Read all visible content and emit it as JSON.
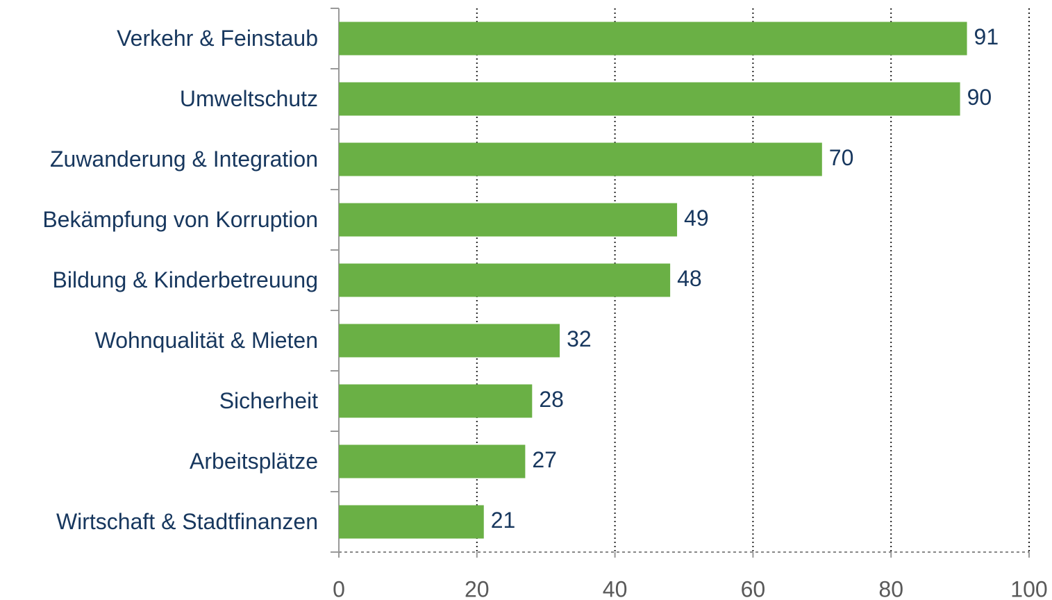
{
  "chart_data": {
    "type": "bar",
    "orientation": "horizontal",
    "categories": [
      "Verkehr & Feinstaub",
      "Umweltschutz",
      "Zuwanderung & Integration",
      "Bekämpfung von Korruption",
      "Bildung & Kinderbetreuung",
      "Wohnqualität & Mieten",
      "Sicherheit",
      "Arbeitsplätze",
      "Wirtschaft & Stadtfinanzen"
    ],
    "values": [
      91,
      90,
      70,
      49,
      48,
      32,
      28,
      27,
      21
    ],
    "color": "#6ab045",
    "xlim": [
      0,
      100
    ],
    "xticks": [
      0,
      20,
      40,
      60,
      80,
      100
    ],
    "grid": true
  }
}
